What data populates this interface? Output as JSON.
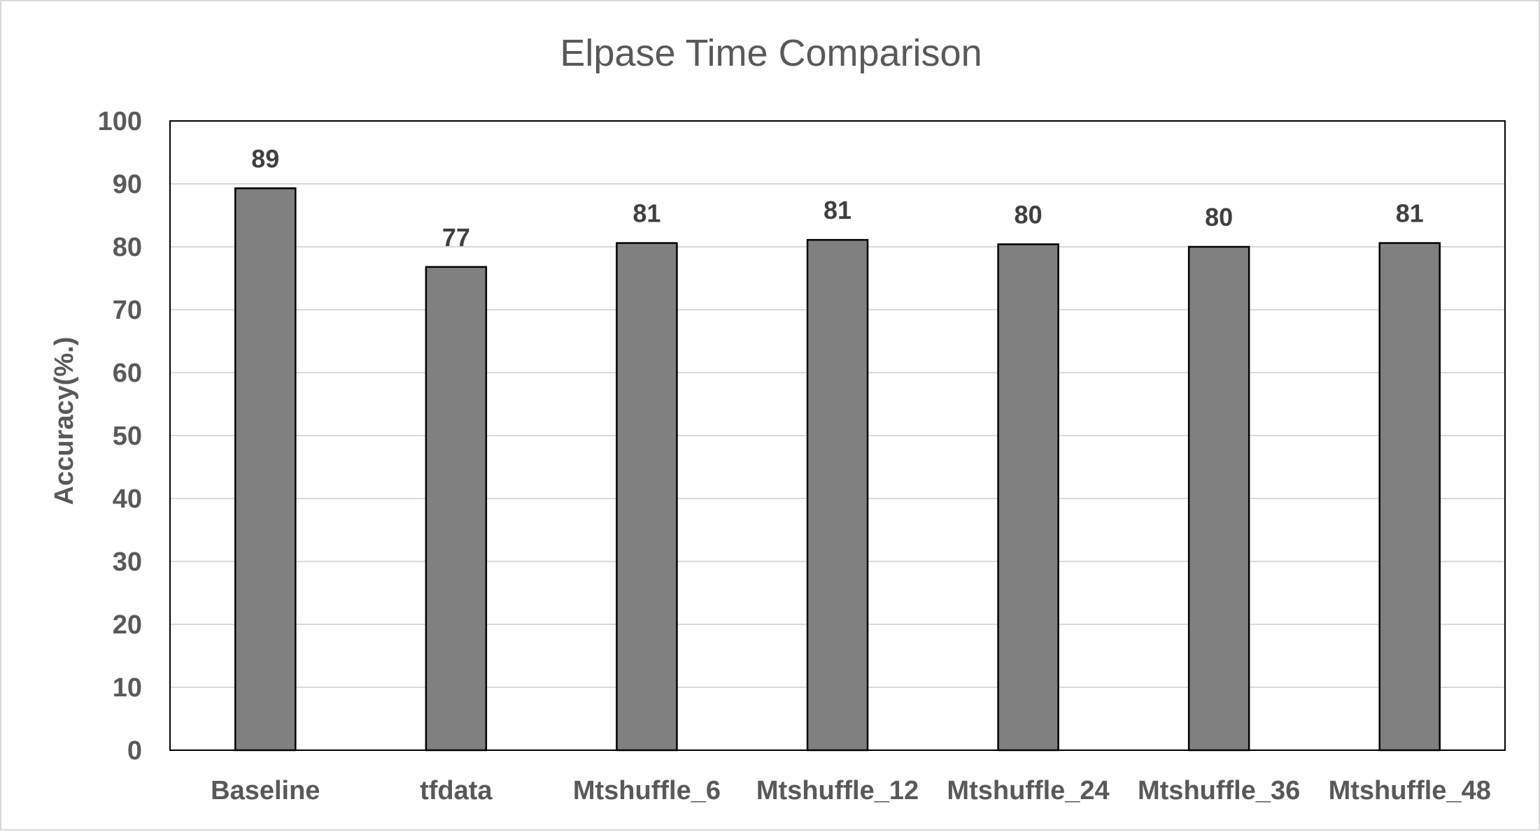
{
  "chart_data": {
    "type": "bar",
    "title": "Elpase Time Comparison",
    "xlabel": "",
    "ylabel": "Accuracy(%.)",
    "categories": [
      "Baseline",
      "tfdata",
      "Mtshuffle_6",
      "Mtshuffle_12",
      "Mtshuffle_24",
      "Mtshuffle_36",
      "Mtshuffle_48"
    ],
    "values": [
      89.3,
      76.8,
      80.6,
      81.1,
      80.4,
      80.0,
      80.6
    ],
    "data_labels": [
      "89",
      "77",
      "81",
      "81",
      "80",
      "80",
      "81"
    ],
    "ylim": [
      0,
      100
    ],
    "yticks": [
      "0",
      "10",
      "20",
      "30",
      "40",
      "50",
      "60",
      "70",
      "80",
      "90",
      "100"
    ],
    "grid": true,
    "legend": false,
    "colors": {
      "bar_fill": "#808080",
      "bar_stroke": "#000000",
      "grid": "#d9d9d9",
      "text": "#595959"
    }
  }
}
